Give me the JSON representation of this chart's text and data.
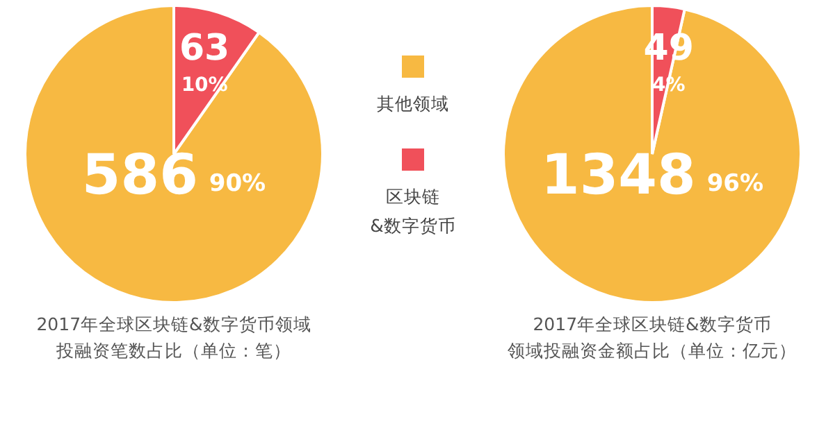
{
  "chart_data": [
    {
      "type": "pie",
      "title": "2017年全球区块链&数字货币领域",
      "subtitle": "投融资笔数占比（单位：笔）",
      "categories": [
        "其他领域",
        "区块链\n&数字货币"
      ],
      "values": [
        586,
        63
      ],
      "colors": [
        "#f7b942",
        "#f0505a"
      ],
      "value_labels": [
        "586 90%",
        "63 10%"
      ],
      "legend": "right"
    },
    {
      "type": "pie",
      "title": "2017年全球区块链&数字货币",
      "subtitle": "领域投融资金额占比（单位：亿元）",
      "values": [
        1348,
        49
      ],
      "colors": [
        "#f7b942",
        "#f0505a"
      ],
      "value_labels": [
        "1348 96%",
        "49 4%"
      ]
    }
  ]
}
